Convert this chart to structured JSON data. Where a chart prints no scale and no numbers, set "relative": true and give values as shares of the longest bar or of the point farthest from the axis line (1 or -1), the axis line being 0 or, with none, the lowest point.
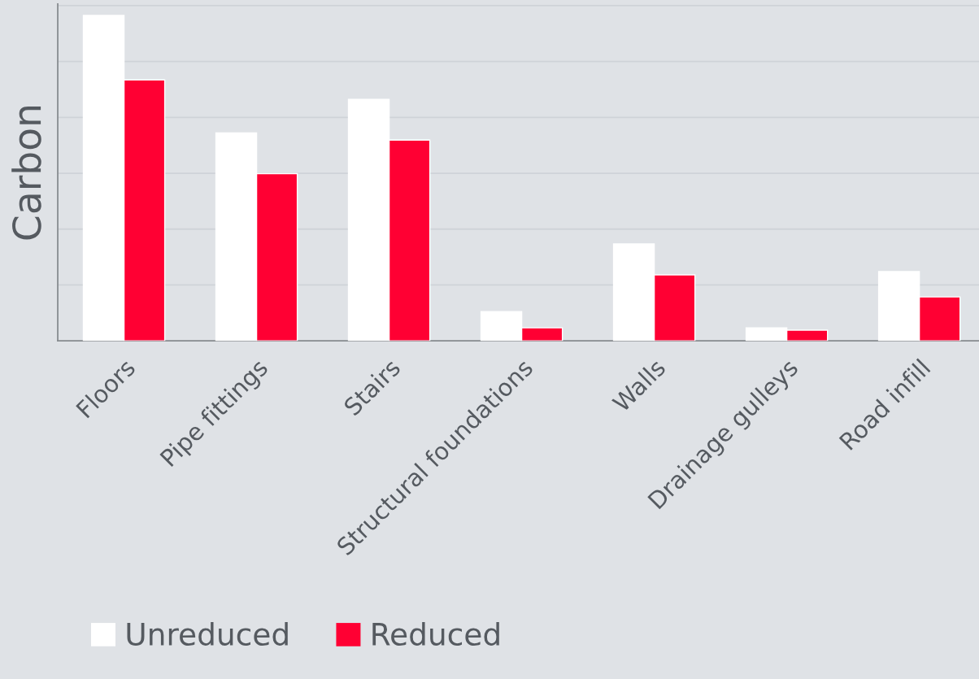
{
  "chart_data": {
    "type": "bar",
    "ylabel": "Carbon",
    "relative": true,
    "grid": "y",
    "legend": "bottom",
    "categories": [
      "Floors",
      "Pipe fittings",
      "Stairs",
      "Structural foundations",
      "Walls",
      "Drainage gulleys",
      "Road infill"
    ],
    "series": [
      {
        "name": "Unreduced",
        "color": "#ffffff",
        "values": [
          1.0,
          0.639,
          0.742,
          0.09,
          0.298,
          0.04,
          0.213
        ]
      },
      {
        "name": "Reduced",
        "color": "#ff0033",
        "values": [
          0.802,
          0.514,
          0.617,
          0.04,
          0.203,
          0.033,
          0.135
        ]
      }
    ]
  }
}
